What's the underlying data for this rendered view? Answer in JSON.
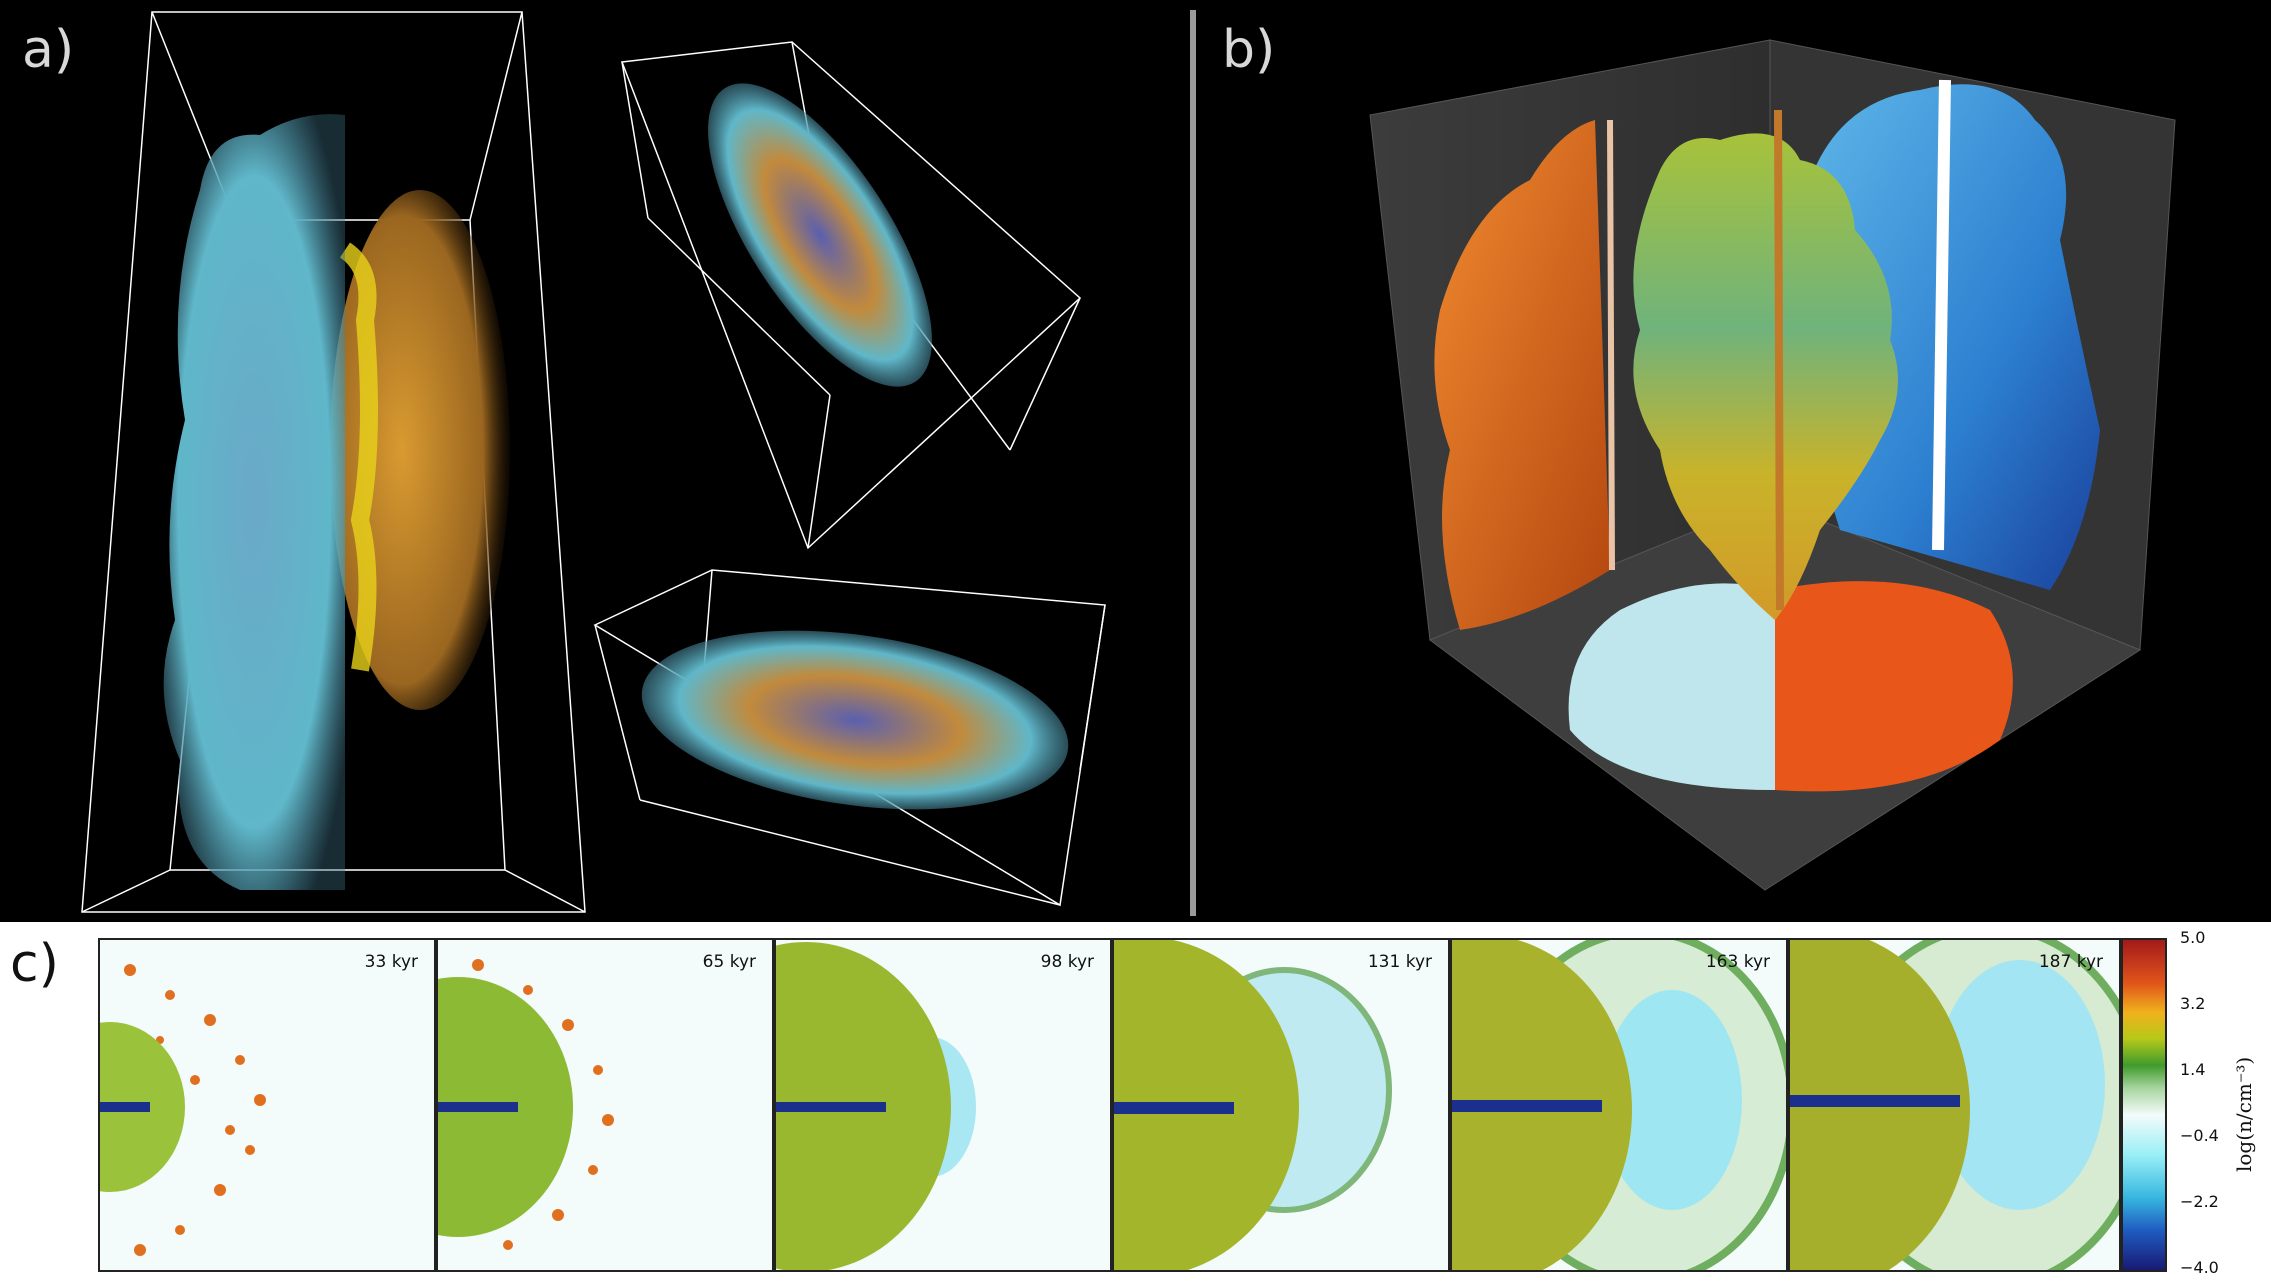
{
  "panels": {
    "a_label": "a)",
    "b_label": "b)",
    "c_label": "c)"
  },
  "timeline": {
    "frames": [
      {
        "time": "33 kyr"
      },
      {
        "time": "65 kyr"
      },
      {
        "time": "98 kyr"
      },
      {
        "time": "131 kyr"
      },
      {
        "time": "163 kyr"
      },
      {
        "time": "187 kyr"
      }
    ]
  },
  "colorbar": {
    "ticks": [
      "5.0",
      "3.2",
      "1.4",
      "−0.4",
      "−2.2",
      "−4.0"
    ],
    "label": "log(n/cm⁻³)"
  },
  "colors": {
    "background_top": "#000000",
    "cloud_cyan": "#5fb7c9",
    "cloud_orange": "#c98a2a",
    "divider": "#9a9a9a"
  }
}
